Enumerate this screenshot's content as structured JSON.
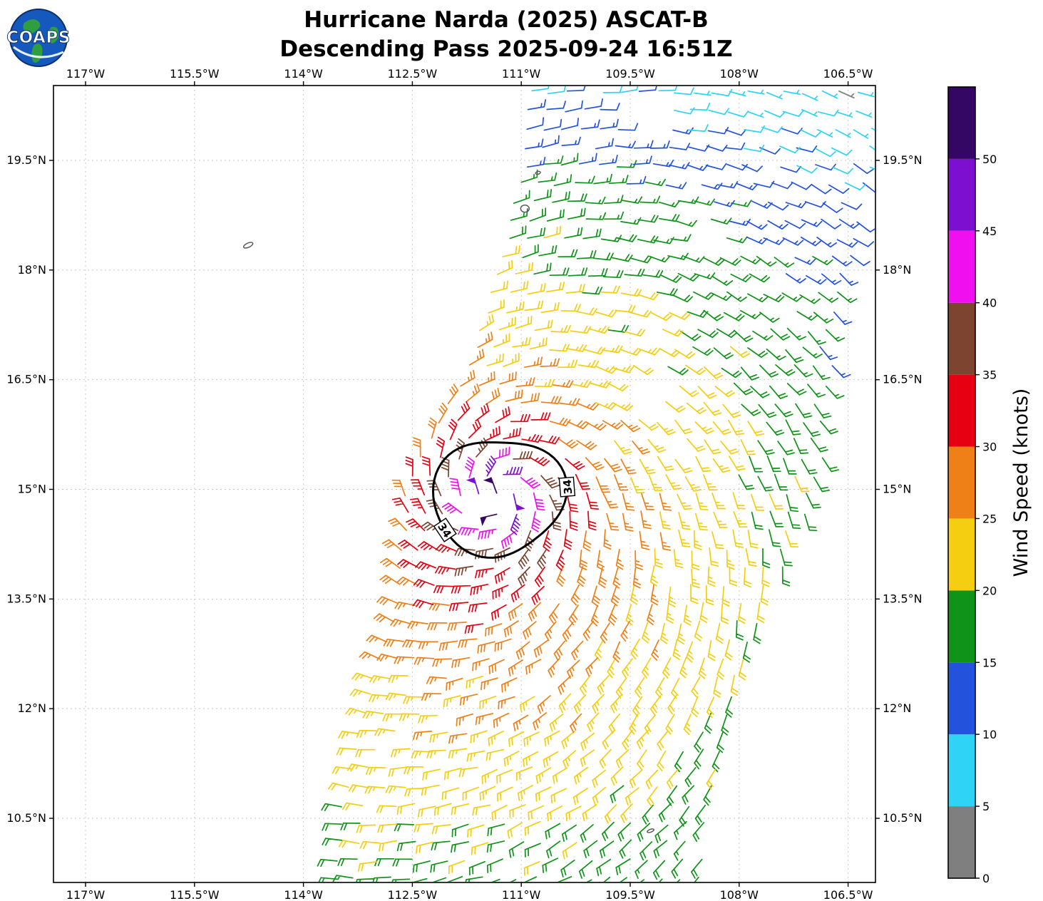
{
  "logo": {
    "text": "COAPS"
  },
  "title": {
    "line1": "Hurricane Narda (2025) ASCAT-B",
    "line2": "Descending Pass 2025-09-24 16:51Z"
  },
  "chart_data": {
    "type": "wind_barb_map",
    "title": "Hurricane Narda (2025) ASCAT-B",
    "subtitle": "Descending Pass 2025-09-24 16:51Z",
    "satellite": "ASCAT-B",
    "pass_type": "Descending",
    "pass_time": "2025-09-24 16:51Z",
    "axes": {
      "grid": true,
      "x_ticks": [
        {
          "value": 117.0,
          "label": "117°W"
        },
        {
          "value": 115.5,
          "label": "115.5°W"
        },
        {
          "value": 114.0,
          "label": "114°W"
        },
        {
          "value": 112.5,
          "label": "112.5°W"
        },
        {
          "value": 111.0,
          "label": "111°W"
        },
        {
          "value": 109.5,
          "label": "109.5°W"
        },
        {
          "value": 108.0,
          "label": "108°W"
        },
        {
          "value": 106.5,
          "label": "106.5°W"
        }
      ],
      "y_ticks": [
        {
          "value": 19.5,
          "label": "19.5°N"
        },
        {
          "value": 18.0,
          "label": "18°N"
        },
        {
          "value": 16.5,
          "label": "16.5°N"
        },
        {
          "value": 15.0,
          "label": "15°N"
        },
        {
          "value": 13.5,
          "label": "13.5°N"
        },
        {
          "value": 12.0,
          "label": "12°N"
        },
        {
          "value": 10.5,
          "label": "10.5°N"
        }
      ],
      "lon_range_deg_w": [
        117.44,
        106.12
      ],
      "lat_range_deg_n": [
        9.62,
        20.52
      ]
    },
    "colorbar": {
      "label": "Wind Speed (knots)",
      "min": 0,
      "max": 55,
      "ticks": [
        0,
        5,
        10,
        15,
        20,
        25,
        30,
        35,
        40,
        45,
        50
      ],
      "bins": [
        {
          "from": 0,
          "to": 5,
          "color": "#7f7f7f"
        },
        {
          "from": 5,
          "to": 10,
          "color": "#2fd3f5"
        },
        {
          "from": 10,
          "to": 15,
          "color": "#2353dd"
        },
        {
          "from": 15,
          "to": 20,
          "color": "#0f9318"
        },
        {
          "from": 20,
          "to": 25,
          "color": "#f5cd11"
        },
        {
          "from": 25,
          "to": 30,
          "color": "#ef7f17"
        },
        {
          "from": 30,
          "to": 35,
          "color": "#e60012"
        },
        {
          "from": 35,
          "to": 40,
          "color": "#7d4430"
        },
        {
          "from": 40,
          "to": 45,
          "color": "#ef0fef"
        },
        {
          "from": 45,
          "to": 50,
          "color": "#7c0fd0"
        },
        {
          "from": 50,
          "to": 55,
          "color": "#340764"
        }
      ]
    },
    "storm": {
      "name": "Narda",
      "center_lon_w": 111.32,
      "center_lat_n": 14.93
    },
    "wind_profile_kts_by_radius_deg": [
      [
        0,
        53
      ],
      [
        0.25,
        48
      ],
      [
        0.45,
        43
      ],
      [
        0.65,
        38
      ],
      [
        0.9,
        34
      ],
      [
        1.2,
        31
      ],
      [
        1.6,
        28
      ],
      [
        2.2,
        25
      ],
      [
        3.0,
        22.5
      ],
      [
        4.0,
        20
      ],
      [
        5.0,
        17.2
      ],
      [
        6.0,
        14
      ],
      [
        7.0,
        11
      ],
      [
        8.5,
        8
      ]
    ],
    "swath": {
      "grid_spacing_deg": 0.25,
      "left_edge_lat_lon": [
        [
          9.6,
          113.58
        ],
        [
          10.5,
          113.5
        ],
        [
          12.0,
          113.2
        ],
        [
          13.5,
          112.72
        ],
        [
          15.0,
          112.6
        ],
        [
          16.0,
          112.1
        ],
        [
          16.5,
          111.78
        ],
        [
          17.5,
          111.5
        ],
        [
          18.5,
          111.2
        ],
        [
          19.5,
          110.97
        ],
        [
          20.5,
          110.9
        ]
      ],
      "right_edge_lat_lon": [
        [
          9.6,
          108.52
        ],
        [
          10.5,
          108.45
        ],
        [
          12.0,
          108.05
        ],
        [
          13.5,
          107.6
        ],
        [
          15.0,
          106.9
        ],
        [
          16.5,
          106.75
        ],
        [
          18.0,
          106.45
        ],
        [
          19.5,
          106.15
        ],
        [
          20.5,
          106.1
        ]
      ]
    },
    "data_gaps": [
      {
        "lon": 109.38,
        "lat": 20.1,
        "r": 0.32
      },
      {
        "lon": 108.62,
        "lat": 18.5,
        "r": 0.28
      },
      {
        "lon": 109.3,
        "lat": 16.4,
        "r": 0.3
      },
      {
        "lon": 110.6,
        "lat": 12.45,
        "r": 0.22
      }
    ],
    "contour": {
      "level_kts": 34,
      "level_label": "34",
      "center_lon_w": 111.32,
      "center_lat_n": 14.9,
      "mean_radius_deg": 0.85,
      "labels_angle_deg": [
        212,
        8
      ]
    },
    "artifacts": [
      {
        "lon": 114.76,
        "lat": 18.34,
        "rx": 7,
        "ry": 3,
        "rot": -25
      },
      {
        "lon": 110.95,
        "lat": 18.84,
        "rx": 6,
        "ry": 5,
        "rot": 0
      },
      {
        "lon": 110.77,
        "lat": 19.33,
        "rx": 3.5,
        "ry": 2,
        "rot": -15
      },
      {
        "lon": 109.22,
        "lat": 10.33,
        "rx": 5,
        "ry": 2,
        "rot": -20
      }
    ]
  }
}
